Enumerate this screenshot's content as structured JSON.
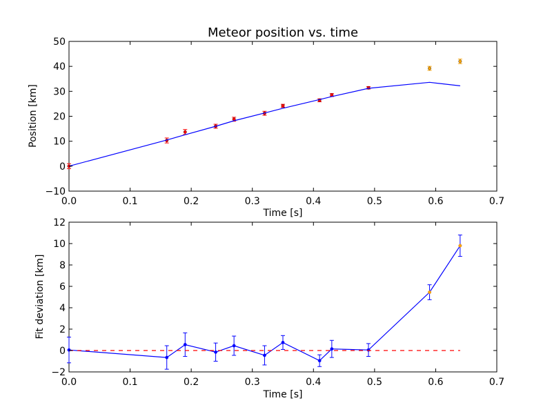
{
  "chart_data": [
    {
      "type": "scatter",
      "title": "Meteor position vs. time",
      "xlabel": "Time [s]",
      "ylabel": "Position [km]",
      "xlim": [
        0.0,
        0.7
      ],
      "ylim": [
        -10,
        50
      ],
      "xticks": [
        "0.0",
        "0.1",
        "0.2",
        "0.3",
        "0.4",
        "0.5",
        "0.6",
        "0.7"
      ],
      "yticks": [
        "−10",
        "0",
        "10",
        "20",
        "30",
        "40",
        "50"
      ],
      "grid": false,
      "series": [
        {
          "kind": "errorbar-points",
          "color": "#ff0000",
          "x": [
            0.0,
            0.16,
            0.19,
            0.24,
            0.27,
            0.32,
            0.35,
            0.41,
            0.43,
            0.49
          ],
          "y": [
            0.0,
            10.3,
            13.7,
            16.0,
            18.8,
            21.2,
            24.2,
            26.4,
            28.5,
            31.4
          ],
          "err": [
            1.0,
            1.0,
            1.0,
            0.8,
            0.8,
            0.8,
            0.6,
            0.6,
            0.6,
            0.5
          ]
        },
        {
          "kind": "errorbar-points",
          "color": "#ffa500",
          "x": [
            0.59,
            0.64
          ],
          "y": [
            39.2,
            42.0
          ],
          "err": [
            0.8,
            0.9
          ]
        },
        {
          "kind": "line",
          "color": "#0000ff",
          "x": [
            0.0,
            0.16,
            0.19,
            0.24,
            0.27,
            0.32,
            0.35,
            0.41,
            0.43,
            0.49,
            0.59,
            0.64
          ],
          "y": [
            0.0,
            10.5,
            12.6,
            16.0,
            18.2,
            21.3,
            23.2,
            26.7,
            27.9,
            31.2,
            33.6,
            32.2
          ]
        }
      ]
    },
    {
      "type": "line",
      "title": "",
      "xlabel": "Time [s]",
      "ylabel": "Fit deviation [km]",
      "xlim": [
        0.0,
        0.7
      ],
      "ylim": [
        -2,
        12
      ],
      "xticks": [
        "0.0",
        "0.1",
        "0.2",
        "0.3",
        "0.4",
        "0.5",
        "0.6",
        "0.7"
      ],
      "yticks": [
        "−2",
        "0",
        "2",
        "4",
        "6",
        "8",
        "10",
        "12"
      ],
      "grid": false,
      "series": [
        {
          "kind": "errorbar-line",
          "color": "#0000ff",
          "x": [
            0.0,
            0.16,
            0.19,
            0.24,
            0.27,
            0.32,
            0.35,
            0.41,
            0.43,
            0.49,
            0.59,
            0.64
          ],
          "y": [
            0.05,
            -0.65,
            0.55,
            -0.15,
            0.45,
            -0.45,
            0.75,
            -0.95,
            0.15,
            0.05,
            5.45,
            9.8
          ],
          "err": [
            1.2,
            1.1,
            1.1,
            0.85,
            0.9,
            0.9,
            0.65,
            0.55,
            0.8,
            0.6,
            0.7,
            1.0
          ]
        },
        {
          "kind": "markers",
          "color": "#ffa500",
          "x": [
            0.59,
            0.64
          ],
          "y": [
            5.45,
            9.8
          ]
        },
        {
          "kind": "dashed-line",
          "color": "#ff0000",
          "x": [
            0.0,
            0.64
          ],
          "y": [
            0.0,
            0.0
          ]
        }
      ]
    }
  ]
}
